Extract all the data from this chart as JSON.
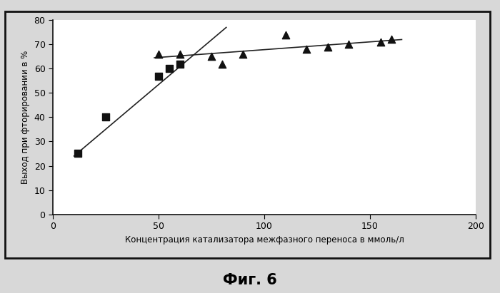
{
  "squares_x": [
    12,
    25,
    50,
    55,
    60
  ],
  "squares_y": [
    25,
    40,
    57,
    60,
    62
  ],
  "triangles_x": [
    50,
    60,
    75,
    80,
    90,
    110,
    120,
    130,
    140,
    155,
    160
  ],
  "triangles_y": [
    66,
    66,
    65,
    62,
    66,
    74,
    68,
    69,
    70,
    71,
    72
  ],
  "line1_x": [
    10,
    82
  ],
  "line1_y": [
    24,
    77
  ],
  "line2_x": [
    48,
    165
  ],
  "line2_y": [
    64.5,
    72
  ],
  "xlim": [
    0,
    200
  ],
  "ylim": [
    0,
    80
  ],
  "xticks": [
    0,
    50,
    100,
    150,
    200
  ],
  "yticks": [
    0,
    10,
    20,
    30,
    40,
    50,
    60,
    70,
    80
  ],
  "xlabel": "Концентрация катализатора межфазного переноса в ммоль/л",
  "ylabel": "Выход при фторировании в %",
  "figcaption": "Фиг. 6",
  "marker_color": "#111111",
  "line_color": "#222222",
  "bg_color": "#d8d8d8",
  "plot_bg": "#ffffff",
  "outer_border_color": "#222222"
}
